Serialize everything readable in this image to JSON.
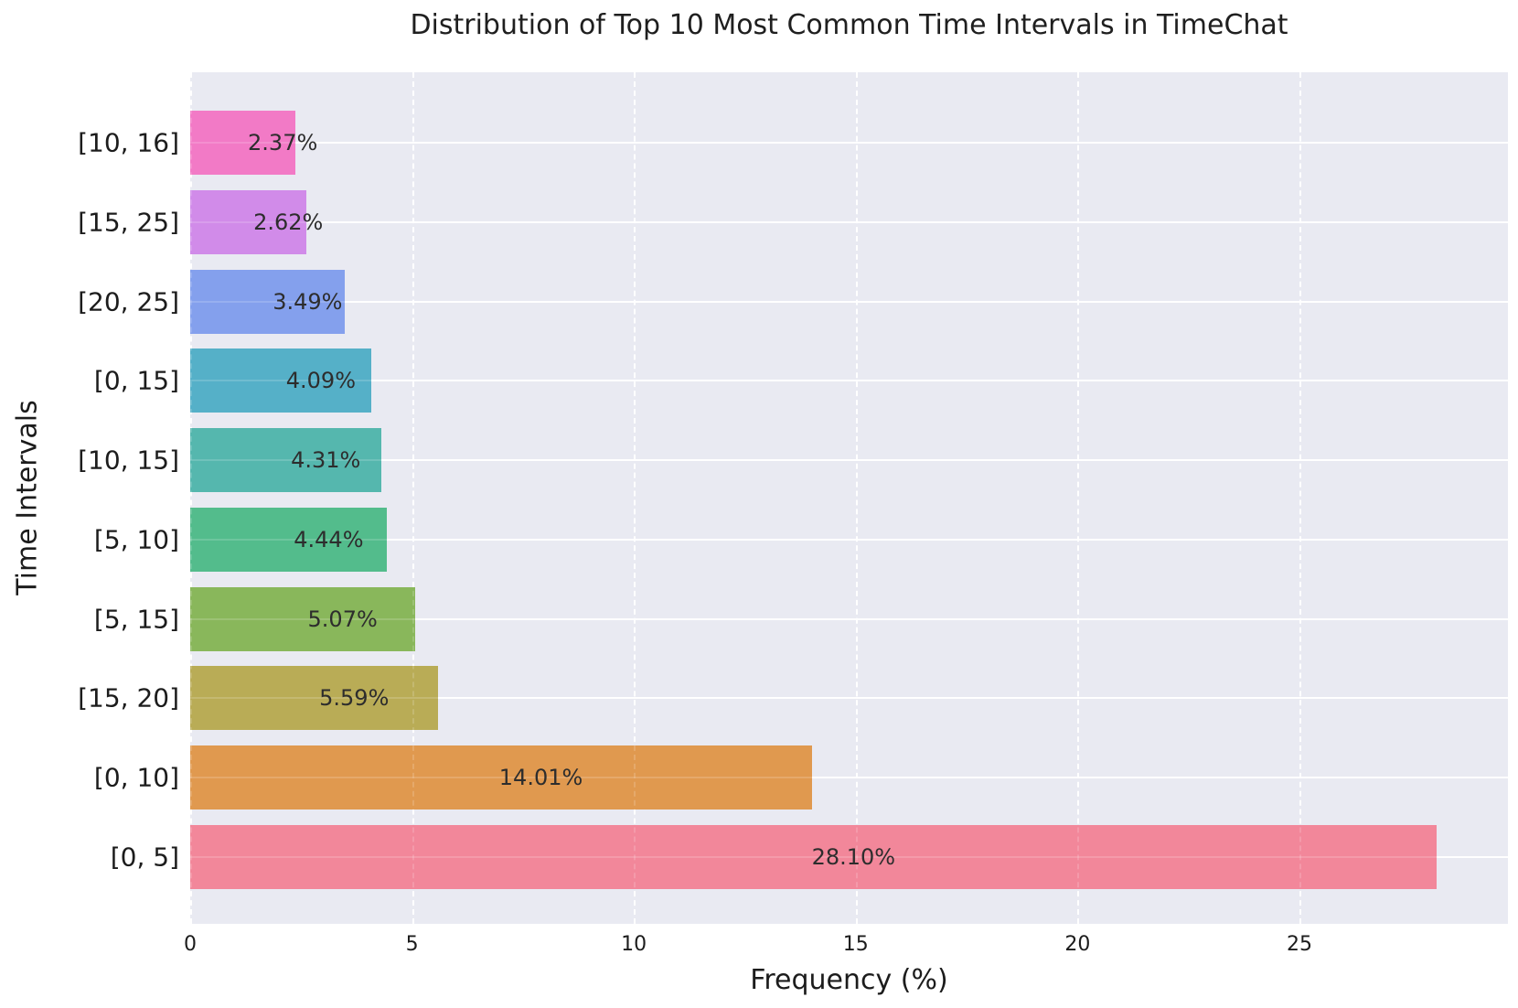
{
  "chart_data": {
    "type": "bar",
    "orientation": "horizontal",
    "title": "Distribution of Top 10 Most Common Time Intervals in TimeChat",
    "xlabel": "Frequency (%)",
    "ylabel": "Time Intervals",
    "categories": [
      "[10, 16]",
      "[15, 25]",
      "[20, 25]",
      "[0, 15]",
      "[10, 15]",
      "[5, 10]",
      "[5, 15]",
      "[15, 20]",
      "[0, 10]",
      "[0, 5]"
    ],
    "values": [
      2.37,
      2.62,
      3.49,
      4.09,
      4.31,
      4.44,
      5.07,
      5.59,
      14.01,
      28.1
    ],
    "value_labels": [
      "2.37%",
      "2.62%",
      "3.49%",
      "4.09%",
      "4.31%",
      "4.44%",
      "5.07%",
      "5.59%",
      "14.01%",
      "28.10%"
    ],
    "bar_colors": [
      "#F27AC6",
      "#D18BE9",
      "#84A0ED",
      "#55B0C8",
      "#55B7AE",
      "#53BC8C",
      "#89B75B",
      "#B9AC56",
      "#E0994F",
      "#F2879A"
    ],
    "xticks": [
      0,
      5,
      10,
      15,
      20,
      25
    ],
    "xlim": [
      0,
      29.7
    ],
    "grid": "on",
    "legend": "none",
    "plot_bg_color": "#E9EAF2",
    "grid_color": "#FFFFFF",
    "text_color": "#1c1c1c"
  }
}
